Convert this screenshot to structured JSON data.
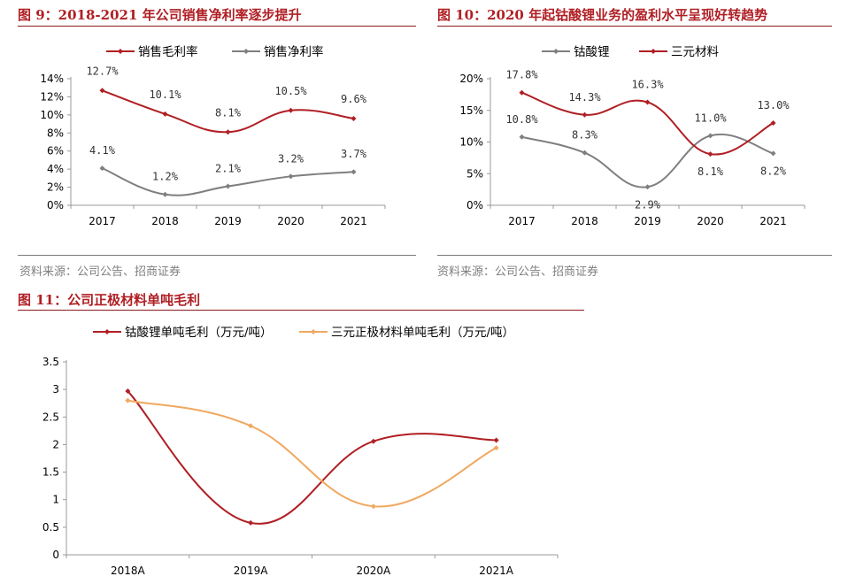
{
  "figures": {
    "fig9": {
      "title": "图 9：2018-2021 年公司销售净利率逐步提升",
      "source": "资料来源：公司公告、招商证券"
    },
    "fig10": {
      "title": "图 10：2020 年起钴酸锂业务的盈利水平呈现好转趋势",
      "source": "资料来源：公司公告、招商证券"
    },
    "fig11": {
      "title": "图 11：公司正极材料单吨毛利"
    }
  },
  "colors": {
    "dark_red": "#b01f24",
    "gray": "#7f7f7f",
    "orange": "#f0a860",
    "axis": "#888888"
  },
  "chart_data": [
    {
      "id": "c9",
      "type": "line",
      "title": "图 9：2018-2021 年公司销售净利率逐步提升",
      "categories": [
        "2017",
        "2018",
        "2019",
        "2020",
        "2021"
      ],
      "yticks": [
        "0%",
        "2%",
        "4%",
        "6%",
        "8%",
        "10%",
        "12%",
        "14%"
      ],
      "ylim": [
        0,
        14
      ],
      "legend_position": "top",
      "series": [
        {
          "name": "销售毛利率",
          "color": "#b01f24",
          "values": [
            12.7,
            10.1,
            8.1,
            10.5,
            9.6
          ],
          "labels": [
            "12.7%",
            "10.1%",
            "8.1%",
            "10.5%",
            "9.6%"
          ]
        },
        {
          "name": "销售净利率",
          "color": "#7f7f7f",
          "values": [
            4.1,
            1.2,
            2.1,
            3.2,
            3.7
          ],
          "labels": [
            "4.1%",
            "1.2%",
            "2.1%",
            "3.2%",
            "3.7%"
          ]
        }
      ]
    },
    {
      "id": "c10",
      "type": "line",
      "title": "图 10：2020 年起钴酸锂业务的盈利水平呈现好转趋势",
      "categories": [
        "2017",
        "2018",
        "2019",
        "2020",
        "2021"
      ],
      "yticks": [
        "0%",
        "5%",
        "10%",
        "15%",
        "20%"
      ],
      "ylim": [
        0,
        20
      ],
      "legend_position": "top",
      "series": [
        {
          "name": "钴酸锂",
          "color": "#7f7f7f",
          "values": [
            10.8,
            8.3,
            2.9,
            11.0,
            8.2
          ],
          "labels": [
            "10.8%",
            "8.3%",
            "2.9%",
            "11.0%",
            "8.2%"
          ]
        },
        {
          "name": "三元材料",
          "color": "#b01f24",
          "values": [
            17.8,
            14.3,
            16.3,
            8.1,
            13.0
          ],
          "labels": [
            "17.8%",
            "14.3%",
            "16.3%",
            "8.1%",
            "13.0%"
          ]
        }
      ]
    },
    {
      "id": "c11",
      "type": "line",
      "title": "图 11：公司正极材料单吨毛利",
      "categories": [
        "2018A",
        "2019A",
        "2020A",
        "2021A"
      ],
      "yticks": [
        "0",
        "0.5",
        "1",
        "1.5",
        "2",
        "2.5",
        "3",
        "3.5"
      ],
      "ylim": [
        0,
        3.5
      ],
      "legend_position": "top",
      "series": [
        {
          "name": "钴酸锂单吨毛利（万元/吨）",
          "color": "#b01f24",
          "values": [
            2.97,
            0.58,
            2.06,
            2.08
          ]
        },
        {
          "name": "三元正极材料单吨毛利（万元/吨）",
          "color": "#f0a860",
          "values": [
            2.8,
            2.34,
            0.88,
            1.94
          ]
        }
      ]
    }
  ]
}
